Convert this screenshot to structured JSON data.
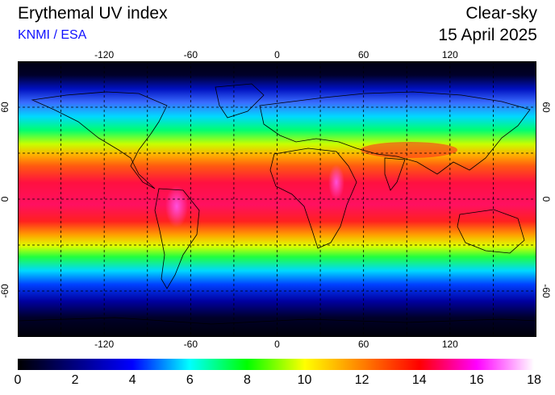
{
  "header": {
    "title": "Erythemal UV index",
    "credit": "KNMI / ESA",
    "mode": "Clear-sky",
    "date": "15 April 2025"
  },
  "map": {
    "projection": "equirectangular",
    "lon_range": [
      -180,
      180
    ],
    "lat_range": [
      -90,
      90
    ],
    "gridlines_lon": [
      -150,
      -120,
      -90,
      -60,
      -30,
      0,
      30,
      60,
      90,
      120,
      150
    ],
    "gridlines_lat": [
      -60,
      -30,
      0,
      30,
      60
    ],
    "lon_ticks": [
      "-120",
      "-60",
      "0",
      "60",
      "120"
    ],
    "lat_ticks": [
      "60",
      "0",
      "-60"
    ],
    "gridline_style": "dashed"
  },
  "colorbar": {
    "min": 0,
    "max": 18,
    "labels": [
      "0",
      "2",
      "4",
      "6",
      "8",
      "10",
      "12",
      "14",
      "16",
      "18"
    ],
    "colors": [
      "#000000",
      "#000080",
      "#0000ff",
      "#00ffff",
      "#00ff00",
      "#ffff00",
      "#ff8000",
      "#ff0000",
      "#ff00ff",
      "#ffffff"
    ]
  }
}
